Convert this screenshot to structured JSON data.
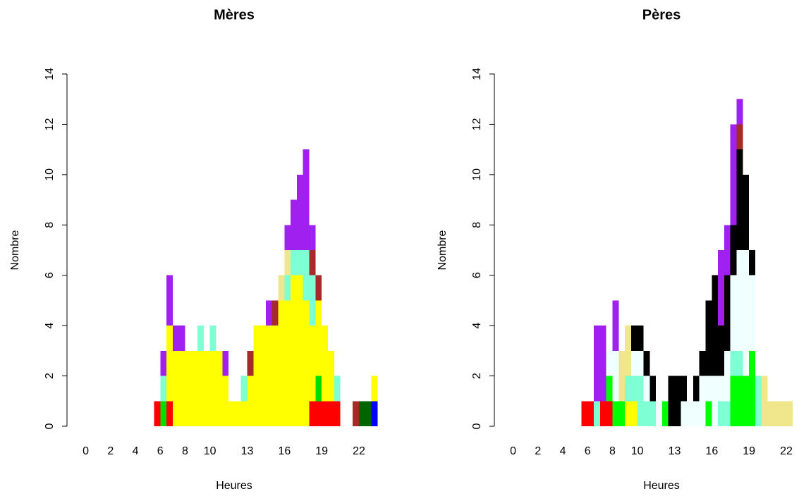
{
  "chart_data": [
    {
      "type": "histogram",
      "stacked": true,
      "title": "Mères",
      "x_label": "Heures",
      "y_label": "Nombre",
      "bins": [
        5.5,
        6,
        6.5,
        7,
        7.5,
        8,
        8.5,
        9,
        9.5,
        10,
        10.5,
        11,
        11.5,
        12,
        12.5,
        13,
        13.5,
        14,
        14.5,
        15,
        15.5,
        16,
        16.5,
        17,
        17.5,
        18,
        18.5,
        19,
        19.5,
        20,
        20.5,
        21,
        21.5,
        22,
        22.5,
        23,
        23.5
      ],
      "xlim": [
        -1,
        24.5
      ],
      "xticks": [
        0,
        2,
        4,
        6,
        8,
        10,
        13,
        16,
        19,
        22
      ],
      "ylim": [
        0,
        14
      ],
      "yticks": [
        0,
        2,
        4,
        6,
        8,
        10,
        12,
        14
      ],
      "series": [
        {
          "color": "#ff0000",
          "values": [
            1,
            0,
            1,
            0,
            0,
            0,
            0,
            0,
            0,
            0,
            0,
            0,
            0,
            0,
            0,
            0,
            0,
            0,
            0,
            0,
            0,
            0,
            0,
            0,
            0,
            1,
            1,
            1,
            1,
            1,
            0,
            0,
            0,
            0,
            0,
            0
          ]
        },
        {
          "color": "#00dd00",
          "values": [
            0,
            1,
            0,
            0,
            0,
            0,
            0,
            0,
            0,
            0,
            0,
            0,
            0,
            0,
            0,
            0,
            0,
            0,
            0,
            0,
            0,
            0,
            0,
            0,
            0,
            0,
            1,
            0,
            0,
            0,
            0,
            0,
            0,
            0,
            0,
            0
          ]
        },
        {
          "color": "#0000ff",
          "values": [
            0,
            0,
            0,
            0,
            0,
            0,
            0,
            0,
            0,
            0,
            0,
            0,
            0,
            0,
            0,
            0,
            0,
            0,
            0,
            0,
            0,
            0,
            0,
            0,
            0,
            0,
            0,
            0,
            0,
            0,
            0,
            0,
            0,
            0,
            0,
            1
          ]
        },
        {
          "color": "#006400",
          "values": [
            0,
            0,
            0,
            0,
            0,
            0,
            0,
            0,
            0,
            0,
            0,
            0,
            0,
            0,
            0,
            0,
            0,
            0,
            0,
            0,
            0,
            0,
            0,
            0,
            0,
            0,
            0,
            0,
            0,
            0,
            0,
            0,
            0,
            1,
            1,
            0
          ]
        },
        {
          "color": "#ffff00",
          "values": [
            0,
            0,
            3,
            3,
            3,
            3,
            3,
            3,
            3,
            3,
            3,
            2,
            1,
            1,
            1,
            2,
            4,
            4,
            4,
            4,
            5,
            5,
            6,
            6,
            5,
            3,
            3,
            3,
            2,
            0,
            0,
            0,
            0,
            0,
            0,
            1
          ]
        },
        {
          "color": "#7fffd4",
          "values": [
            0,
            1,
            0,
            0,
            0,
            0,
            0,
            1,
            0,
            1,
            0,
            0,
            0,
            0,
            1,
            0,
            0,
            0,
            0,
            0,
            0,
            1,
            1,
            1,
            2,
            2,
            0,
            0,
            0,
            1,
            0,
            0,
            0,
            0,
            0,
            0
          ]
        },
        {
          "color": "#f0e68c",
          "values": [
            0,
            0,
            0,
            0,
            0,
            0,
            0,
            0,
            0,
            0,
            0,
            0,
            0,
            0,
            0,
            0,
            0,
            0,
            0,
            0,
            1,
            1,
            0,
            0,
            0,
            0,
            0,
            0,
            0,
            0,
            0,
            0,
            0,
            0,
            0,
            0
          ]
        },
        {
          "color": "#a52a2a",
          "values": [
            0,
            0,
            0,
            0,
            0,
            0,
            0,
            0,
            0,
            0,
            0,
            0,
            0,
            0,
            0,
            1,
            0,
            0,
            0,
            1,
            0,
            0,
            0,
            0,
            0,
            1,
            1,
            0,
            0,
            0,
            0,
            0,
            1,
            0,
            0,
            0
          ]
        },
        {
          "color": "#a020f0",
          "values": [
            0,
            1,
            2,
            1,
            1,
            0,
            0,
            0,
            0,
            0,
            0,
            1,
            0,
            0,
            0,
            0,
            0,
            0,
            1,
            0,
            0,
            1,
            2,
            3,
            4,
            1,
            0,
            0,
            0,
            0,
            0,
            0,
            0,
            0,
            0,
            0
          ]
        }
      ]
    },
    {
      "type": "histogram",
      "stacked": true,
      "title": "Pères",
      "x_label": "Heures",
      "y_label": "Nombre",
      "bins": [
        5.5,
        6,
        6.5,
        7,
        7.5,
        8,
        8.5,
        9,
        9.5,
        10,
        10.5,
        11,
        11.5,
        12,
        12.5,
        13,
        13.5,
        14,
        14.5,
        15,
        15.5,
        16,
        16.5,
        17,
        17.5,
        18,
        18.5,
        19,
        19.5,
        20,
        20.5,
        21,
        21.5,
        22,
        22.5,
        23,
        23.5
      ],
      "xlim": [
        -1,
        24.5
      ],
      "xticks": [
        0,
        2,
        4,
        6,
        8,
        10,
        13,
        16,
        19,
        22
      ],
      "ylim": [
        0,
        14
      ],
      "yticks": [
        0,
        2,
        4,
        6,
        8,
        10,
        12,
        14
      ],
      "series": [
        {
          "color": "#ff0000",
          "values": [
            1,
            1,
            0,
            1,
            1,
            0,
            0,
            0,
            0,
            0,
            0,
            0,
            0,
            0,
            0,
            0,
            0,
            0,
            0,
            0,
            0,
            0,
            0,
            0,
            0,
            0,
            0,
            0,
            0,
            0,
            0,
            0,
            0,
            0,
            0,
            0
          ]
        },
        {
          "color": "#00ff00",
          "values": [
            0,
            0,
            0,
            0,
            1,
            1,
            1,
            0,
            0,
            0,
            0,
            0,
            0,
            1,
            0,
            0,
            0,
            0,
            0,
            0,
            1,
            0,
            0,
            0,
            2,
            2,
            2,
            3,
            0,
            0,
            0,
            0,
            0,
            0,
            0,
            0
          ]
        },
        {
          "color": "#ffff00",
          "values": [
            0,
            0,
            0,
            0,
            0,
            0,
            0,
            1,
            1,
            0,
            0,
            0,
            0,
            0,
            0,
            0,
            0,
            0,
            0,
            0,
            0,
            0,
            0,
            0,
            0,
            0,
            0,
            0,
            0,
            0,
            0,
            0,
            0,
            0,
            0,
            0
          ]
        },
        {
          "color": "#7fffd4",
          "values": [
            0,
            0,
            1,
            0,
            0,
            0,
            0,
            1,
            1,
            2,
            1,
            1,
            0,
            0,
            0,
            0,
            0,
            0,
            0,
            0,
            0,
            0,
            1,
            1,
            1,
            1,
            0,
            0,
            2,
            0,
            0,
            0,
            0,
            0,
            0,
            0
          ]
        },
        {
          "color": "#f0ffff",
          "values": [
            0,
            0,
            0,
            0,
            1,
            2,
            0,
            0,
            1,
            1,
            1,
            0,
            1,
            0,
            0,
            0,
            1,
            1,
            1,
            2,
            1,
            2,
            1,
            2,
            3,
            4,
            5,
            3,
            0,
            0,
            0,
            0,
            0,
            0,
            0,
            0
          ]
        },
        {
          "color": "#f0e68c",
          "values": [
            0,
            0,
            0,
            0,
            0,
            0,
            2,
            2,
            0,
            0,
            0,
            0,
            0,
            0,
            0,
            0,
            0,
            0,
            0,
            0,
            0,
            0,
            0,
            0,
            0,
            0,
            0,
            0,
            0,
            2,
            1,
            1,
            1,
            1,
            0,
            0
          ]
        },
        {
          "color": "#000000",
          "values": [
            0,
            0,
            0,
            0,
            0,
            0,
            0,
            0,
            1,
            1,
            1,
            1,
            0,
            0,
            2,
            2,
            1,
            0,
            1,
            1,
            3,
            4,
            2,
            3,
            2,
            4,
            3,
            1,
            0,
            0,
            0,
            0,
            0,
            0,
            0,
            0
          ]
        },
        {
          "color": "#a52a2a",
          "values": [
            0,
            0,
            0,
            0,
            0,
            0,
            0,
            0,
            0,
            0,
            0,
            0,
            0,
            0,
            0,
            0,
            0,
            0,
            0,
            0,
            0,
            0,
            0,
            0,
            0,
            1,
            0,
            0,
            0,
            0,
            0,
            0,
            0,
            0,
            0,
            0
          ]
        },
        {
          "color": "#a020f0",
          "values": [
            0,
            0,
            3,
            3,
            0,
            2,
            0,
            0,
            0,
            0,
            0,
            0,
            0,
            0,
            0,
            0,
            0,
            0,
            0,
            0,
            0,
            0,
            3,
            2,
            4,
            1,
            0,
            0,
            0,
            0,
            0,
            0,
            0,
            0,
            0,
            0
          ]
        }
      ]
    }
  ]
}
